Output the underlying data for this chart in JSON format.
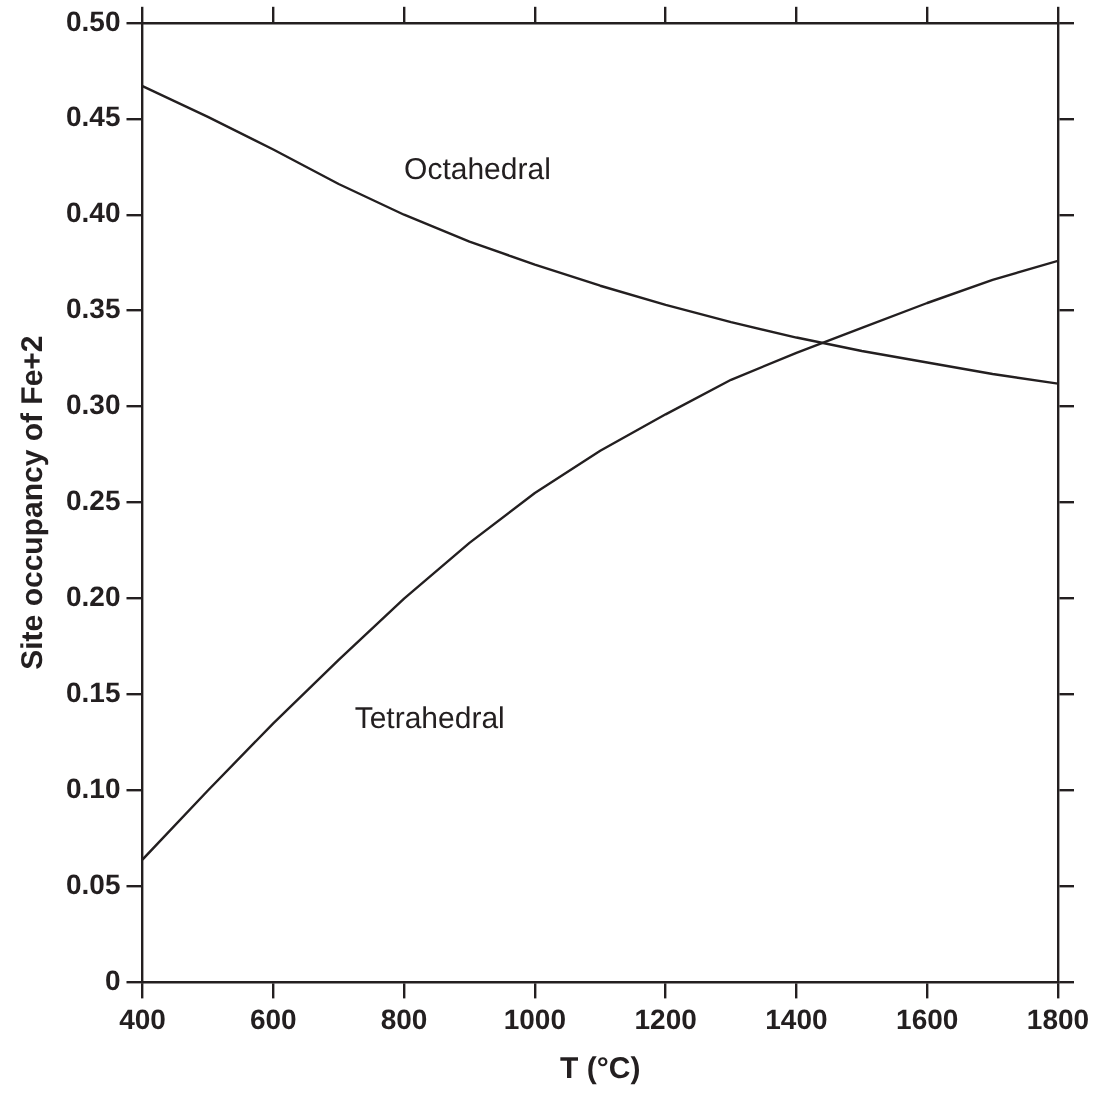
{
  "chart_data": {
    "type": "line",
    "xlabel": "T (°C)",
    "ylabel": "Site occupancy of Fe+2",
    "x": [
      400,
      500,
      600,
      700,
      800,
      900,
      1000,
      1100,
      1200,
      1300,
      1400,
      1500,
      1600,
      1700,
      1800
    ],
    "series": [
      {
        "name": "Octahedral",
        "color": "#231f20",
        "values": [
          0.467,
          0.451,
          0.434,
          0.416,
          0.4,
          0.386,
          0.374,
          0.363,
          0.353,
          0.344,
          0.336,
          0.329,
          0.323,
          0.317,
          0.312
        ]
      },
      {
        "name": "Tetrahedral",
        "color": "#231f20",
        "values": [
          0.064,
          0.1,
          0.135,
          0.168,
          0.2,
          0.229,
          0.255,
          0.277,
          0.296,
          0.314,
          0.328,
          0.341,
          0.354,
          0.366,
          0.376
        ]
      }
    ],
    "xlim": [
      400,
      1800
    ],
    "xticks": [
      400,
      600,
      800,
      1000,
      1200,
      1400,
      1600,
      1800
    ],
    "ylim": [
      0,
      0.5
    ],
    "yticks": [
      0,
      0.05,
      {
        "value": 0.1,
        "label": "0.10"
      },
      0.15,
      {
        "value": 0.2,
        "label": "0.20"
      },
      0.25,
      {
        "value": 0.3,
        "label": "0.30"
      },
      0.35,
      {
        "value": 0.4,
        "label": "0.40"
      },
      0.45,
      {
        "value": 0.5,
        "label": "0.50"
      }
    ],
    "grid": false,
    "legend": false,
    "marker": "none",
    "line_style": "solid"
  }
}
